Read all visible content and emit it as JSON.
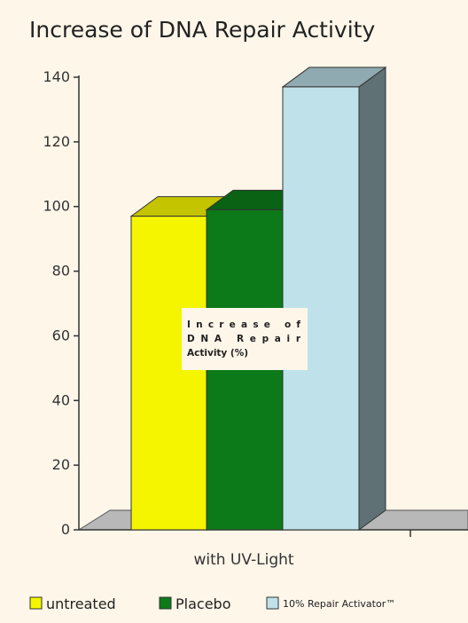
{
  "chart_data": {
    "type": "bar",
    "title": "Increase of DNA Repair Activity",
    "categories": [
      "with UV-Light"
    ],
    "series": [
      {
        "name": "untreated",
        "values": [
          97
        ],
        "color": "#f5f500"
      },
      {
        "name": "Placebo",
        "values": [
          99
        ],
        "color": "#0d7a1a"
      },
      {
        "name": "10% Repair Activator™",
        "values": [
          137
        ],
        "color": "#bfe2ea"
      }
    ],
    "ylim": [
      0,
      140
    ],
    "yticks": [
      0,
      20,
      40,
      60,
      80,
      100,
      120,
      140
    ],
    "ylabel": "",
    "xlabel": "",
    "grid": false,
    "three_d": true,
    "legend_position": "bottom",
    "annotation_lines": [
      "Increase of",
      "DNA Repair",
      "Activity (%)"
    ]
  }
}
